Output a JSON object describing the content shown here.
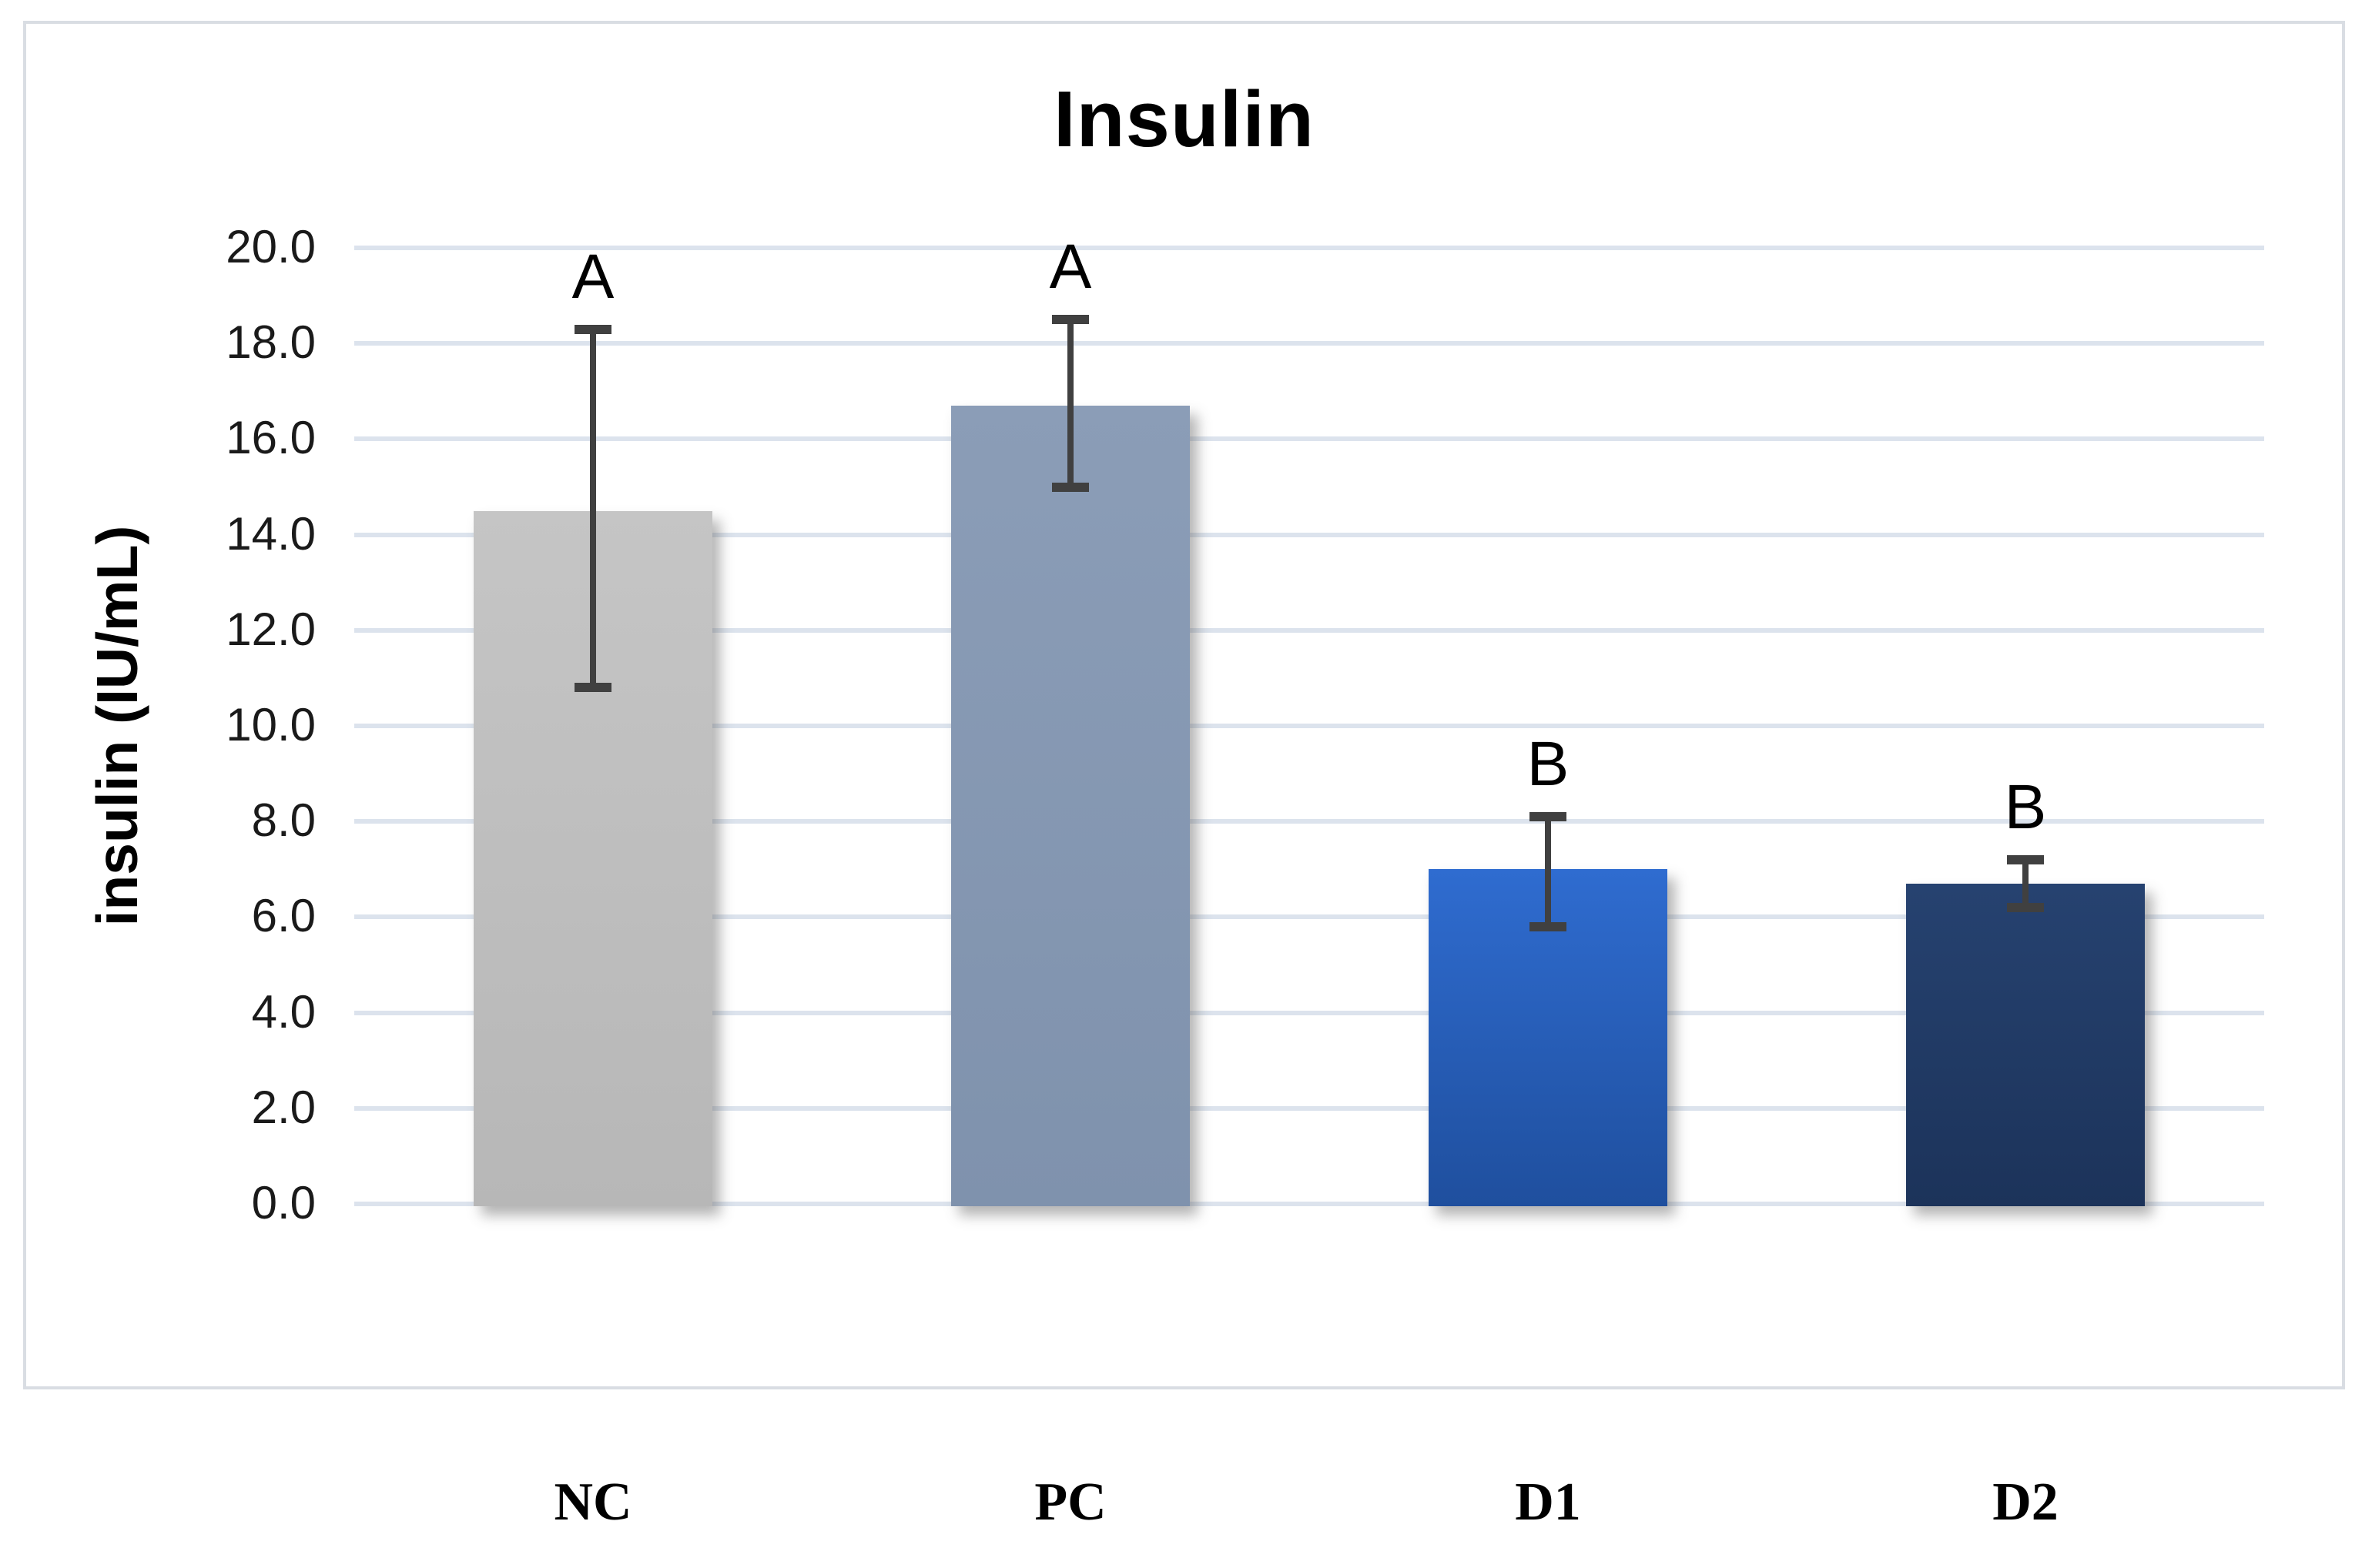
{
  "figure": {
    "title": "Insulin",
    "y_axis_title": "insulin (IU/mL)"
  },
  "chart_data": {
    "type": "bar",
    "title": "Insulin",
    "xlabel": "",
    "ylabel": "insulin (IU/mL)",
    "categories": [
      "NC",
      "PC",
      "D1",
      "D2"
    ],
    "values": [
      14.5,
      16.7,
      7.0,
      6.7
    ],
    "error_high": [
      18.3,
      18.5,
      8.1,
      7.2
    ],
    "error_low": [
      10.8,
      15.0,
      5.8,
      6.2
    ],
    "sig_letters": [
      "A",
      "A",
      "B",
      "B"
    ],
    "ylim": [
      0,
      20
    ],
    "ytick_step": 2.0,
    "ytick_labels": [
      "20.0",
      "18.0",
      "16.0",
      "14.0",
      "12.0",
      "10.0",
      "8.0",
      "6.0",
      "4.0",
      "2.0",
      "0.0"
    ],
    "grid": true,
    "legend": false,
    "bars": [
      {
        "label": "NC",
        "color": "#BFBFBF",
        "fill_top": "#c5c5c5",
        "fill_bottom": "#b7b7b7"
      },
      {
        "label": "PC",
        "color": "#8496B0",
        "fill_top": "#8b9db7",
        "fill_bottom": "#7f92ad"
      },
      {
        "label": "D1",
        "color": "#2A63C4",
        "fill_top": "#2f6cd0",
        "fill_bottom": "#1f4f9e"
      },
      {
        "label": "D2",
        "color": "#1F3864",
        "fill_top": "#264270",
        "fill_bottom": "#1c335a"
      }
    ],
    "error_bar_color": "#404040",
    "gridline_color": "#dce3ed",
    "frame_border_color": "#d9dde3"
  }
}
